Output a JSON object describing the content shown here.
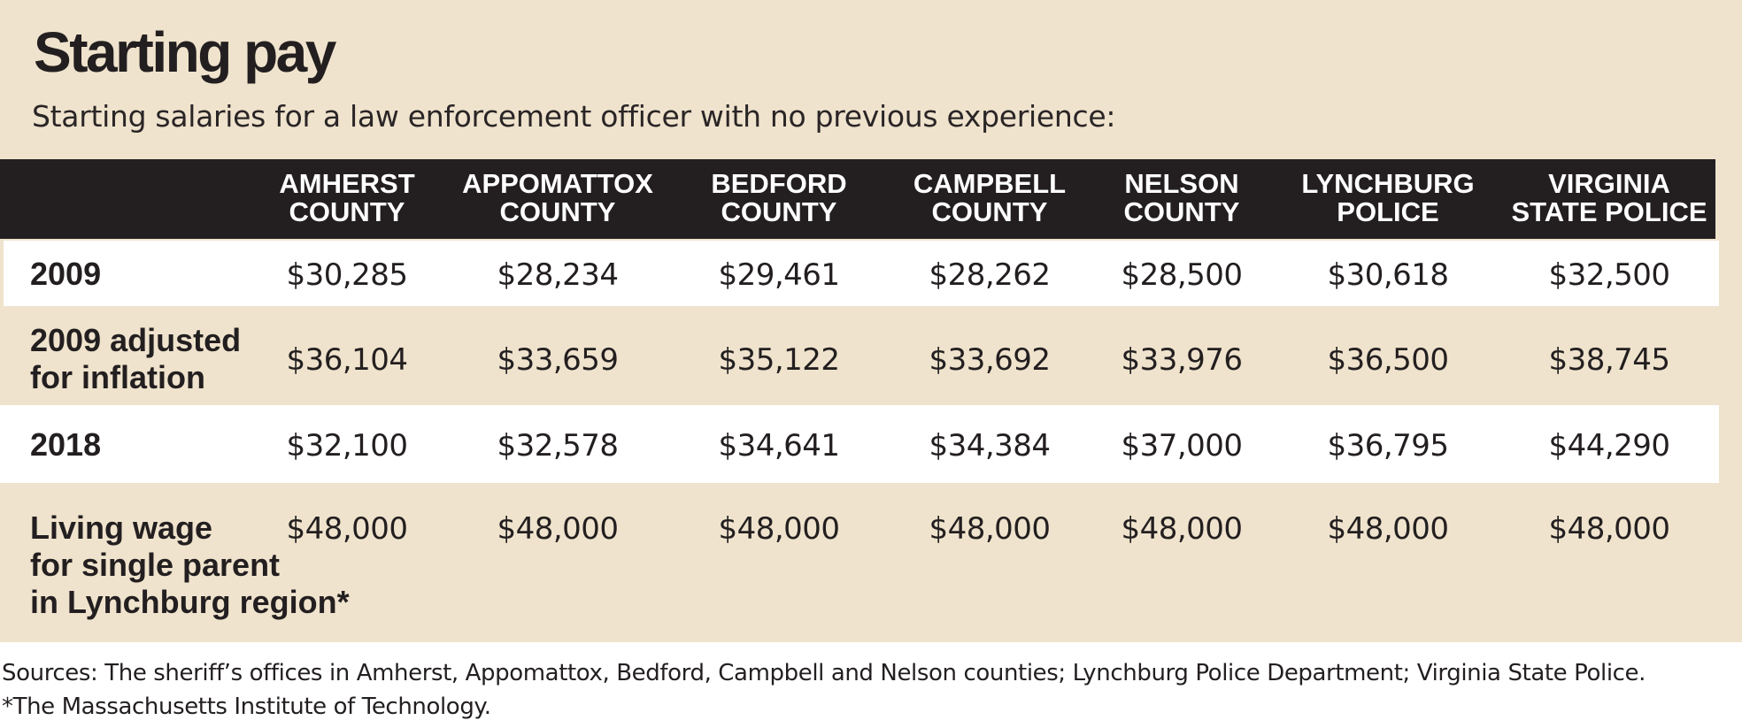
{
  "title": "Starting pay",
  "subtitle": "Starting salaries for a law enforcement officer with no previous experience:",
  "colors": {
    "panel": "#efe3cd",
    "header_band": "#231f20",
    "white_row": "#ffffff",
    "text": "#231f20"
  },
  "chart_data": {
    "type": "table",
    "columns": [
      [
        "AMHERST",
        "COUNTY"
      ],
      [
        "APPOMATTOX",
        "COUNTY"
      ],
      [
        "BEDFORD",
        "COUNTY"
      ],
      [
        "CAMPBELL",
        "COUNTY"
      ],
      [
        "NELSON",
        "COUNTY"
      ],
      [
        "LYNCHBURG",
        "POLICE"
      ],
      [
        "VIRGINIA",
        "STATE POLICE"
      ]
    ],
    "rows": [
      {
        "label": [
          "2009"
        ],
        "values": [
          "$30,285",
          "$28,234",
          "$29,461",
          "$28,262",
          "$28,500",
          "$30,618",
          "$32,500"
        ]
      },
      {
        "label": [
          "2009 adjusted",
          "for inflation"
        ],
        "values": [
          "$36,104",
          "$33,659",
          "$35,122",
          "$33,692",
          "$33,976",
          "$36,500",
          "$38,745"
        ]
      },
      {
        "label": [
          "2018"
        ],
        "values": [
          "$32,100",
          "$32,578",
          "$34,641",
          "$34,384",
          "$37,000",
          "$36,795",
          "$44,290"
        ]
      },
      {
        "label": [
          "Living wage",
          "for single parent",
          "in Lynchburg region*"
        ],
        "values": [
          "$48,000",
          "$48,000",
          "$48,000",
          "$48,000",
          "$48,000",
          "$48,000",
          "$48,000"
        ]
      }
    ]
  },
  "footer": {
    "sources": "Sources: The sheriff’s offices in Amherst, Appomattox, Bedford, Campbell and Nelson counties; Lynchburg Police Department; Virginia State Police.",
    "note": "*The Massachusetts Institute of Technology."
  }
}
